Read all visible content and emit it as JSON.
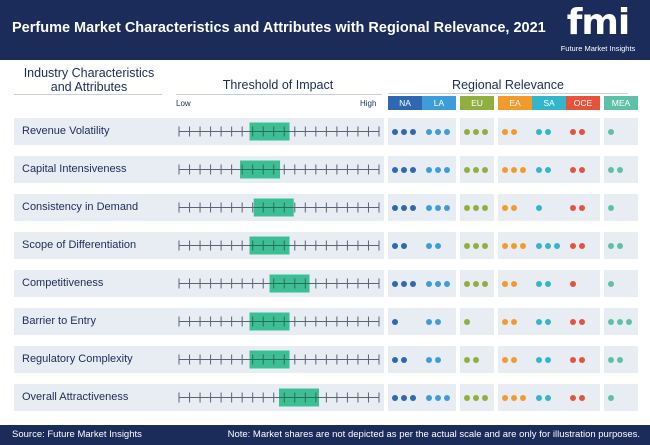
{
  "header": {
    "title": "Perfume Market Characteristics and Attributes with Regional Relevance, 2021",
    "logo_mark": "fmi",
    "logo_text": "Future Market Insights"
  },
  "columns": {
    "industry": "Industry Characteristics and Attributes",
    "threshold": "Threshold of Impact",
    "regional": "Regional Relevance",
    "low": "Low",
    "high": "High"
  },
  "colors": {
    "navy": "#1b2c5b",
    "band": "#e8ecf3",
    "impact_box": "#3cbf95"
  },
  "chart_data": {
    "type": "table",
    "title": "Perfume Market Characteristics and Attributes with Regional Relevance, 2021",
    "scale_ticks": 20,
    "regions": [
      {
        "code": "NA",
        "color": "#2e67b2"
      },
      {
        "code": "LA",
        "color": "#3d9ddb"
      },
      {
        "code": "EU",
        "color": "#8fb03f"
      },
      {
        "code": "EA",
        "color": "#f39a2c"
      },
      {
        "code": "SA",
        "color": "#31b7c9"
      },
      {
        "code": "OCE",
        "color": "#e5533d"
      },
      {
        "code": "MEA",
        "color": "#5fc0a9"
      }
    ],
    "rows": [
      {
        "label": "Revenue Volatility",
        "impact_start": 6.7,
        "impact_end": 10.5,
        "dots": [
          3,
          3,
          3,
          2,
          2,
          2,
          1
        ]
      },
      {
        "label": "Capital Intensiveness",
        "impact_start": 5.8,
        "impact_end": 9.6,
        "dots": [
          3,
          3,
          3,
          3,
          2,
          2,
          2
        ]
      },
      {
        "label": "Consistency in Demand",
        "impact_start": 7.1,
        "impact_end": 10.9,
        "dots": [
          3,
          3,
          3,
          2,
          1,
          2,
          1
        ]
      },
      {
        "label": "Scope of Differentiation",
        "impact_start": 6.7,
        "impact_end": 10.5,
        "dots": [
          2,
          2,
          3,
          3,
          3,
          2,
          2
        ]
      },
      {
        "label": "Competitiveness",
        "impact_start": 8.6,
        "impact_end": 12.4,
        "dots": [
          3,
          3,
          3,
          2,
          2,
          1,
          1
        ]
      },
      {
        "label": "Barrier to Entry",
        "impact_start": 6.7,
        "impact_end": 10.5,
        "dots": [
          1,
          2,
          1,
          2,
          2,
          2,
          3
        ]
      },
      {
        "label": "Regulatory Complexity",
        "impact_start": 6.7,
        "impact_end": 10.5,
        "dots": [
          2,
          2,
          2,
          2,
          2,
          2,
          2
        ]
      },
      {
        "label": "Overall Attractiveness",
        "impact_start": 9.5,
        "impact_end": 13.3,
        "dots": [
          3,
          3,
          3,
          3,
          2,
          2,
          1
        ]
      }
    ]
  },
  "footer": {
    "source": "Source: Future Market Insights",
    "note": "Note: Market shares are not depicted as per the actual scale and are only for illustration purposes."
  }
}
